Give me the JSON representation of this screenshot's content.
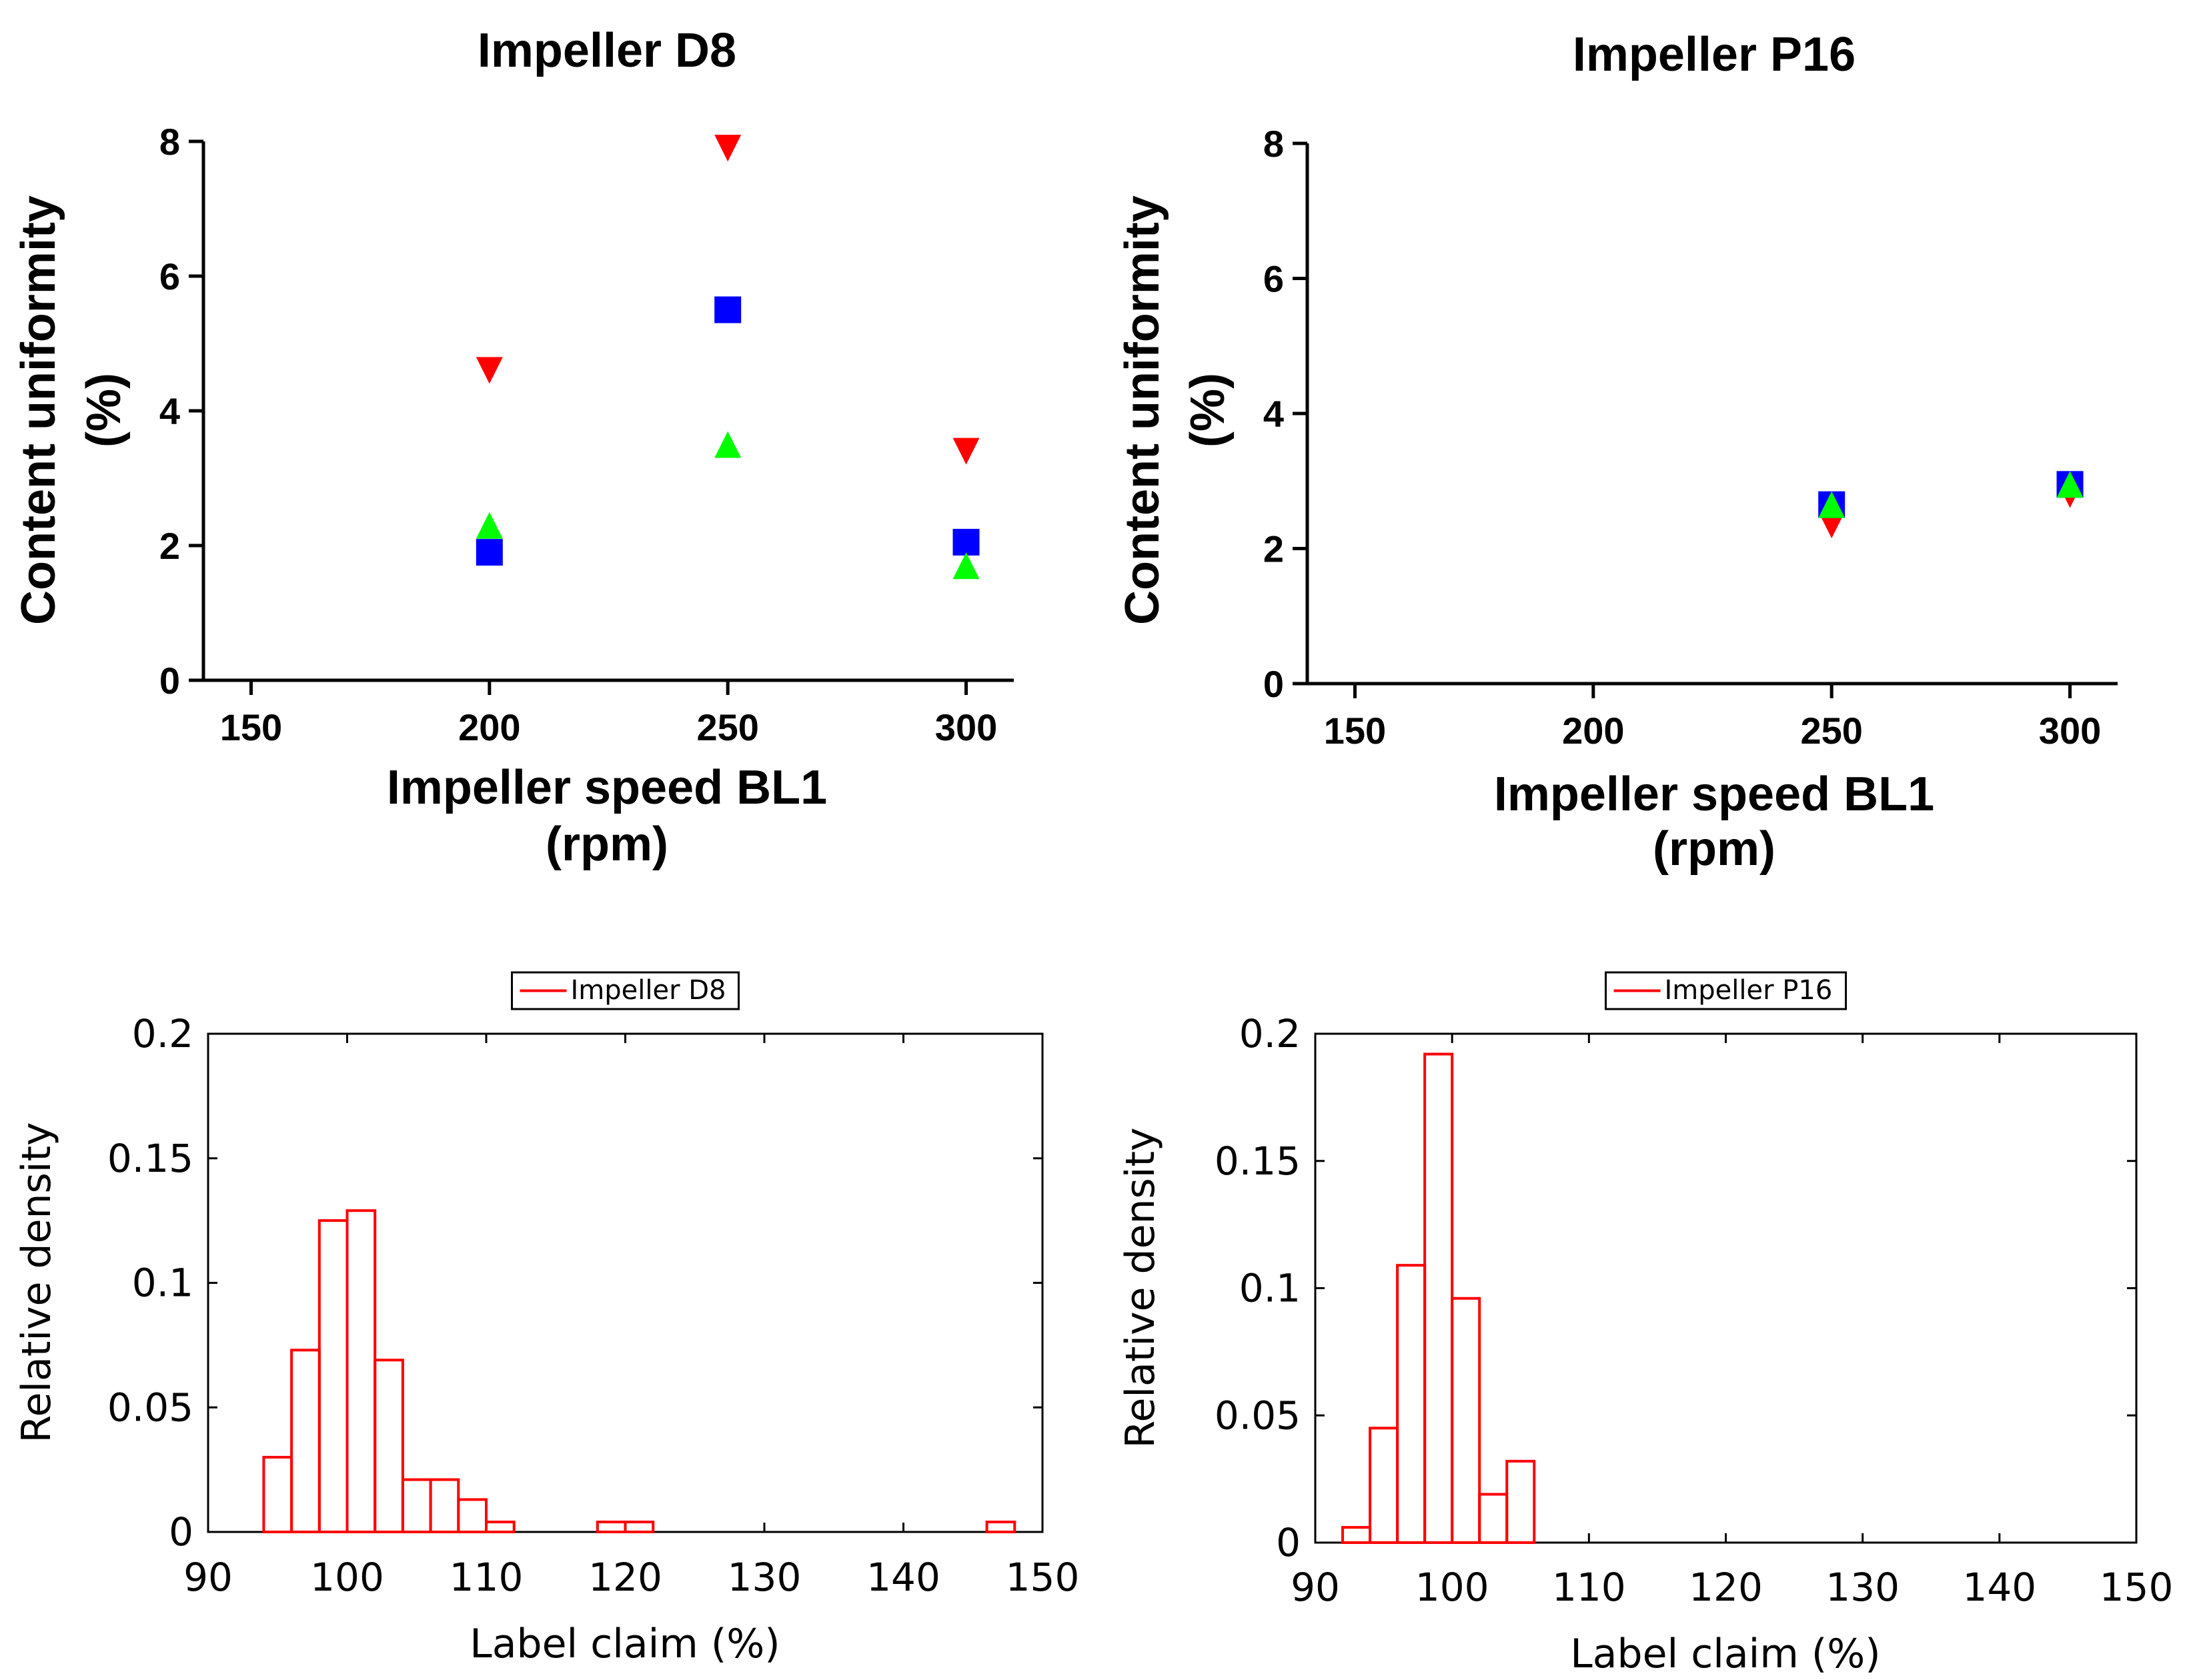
{
  "chart_data": [
    {
      "id": "sc1",
      "type": "scatter",
      "title": "Impeller D8",
      "xlabel": [
        "Impeller speed BL1",
        "(rpm)"
      ],
      "ylabel": [
        "Content uniformity",
        "(%)"
      ],
      "xlim": [
        140,
        310
      ],
      "ylim": [
        0,
        8
      ],
      "xticks": [
        150,
        200,
        250,
        300
      ],
      "yticks": [
        0,
        2,
        4,
        6,
        8
      ],
      "series": [
        {
          "name": "series-red-down-triangle",
          "color": "#ff0000",
          "marker": "triangle-down",
          "points": [
            [
              200,
              4.6
            ],
            [
              250,
              7.9
            ],
            [
              300,
              3.4
            ]
          ]
        },
        {
          "name": "series-blue-square",
          "color": "#0000ff",
          "marker": "square",
          "points": [
            [
              200,
              1.9
            ],
            [
              250,
              5.5
            ],
            [
              300,
              2.05
            ]
          ]
        },
        {
          "name": "series-green-up-triangle",
          "color": "#00ff00",
          "marker": "triangle-up",
          "points": [
            [
              200,
              2.3
            ],
            [
              250,
              3.5
            ],
            [
              300,
              1.7
            ]
          ]
        }
      ]
    },
    {
      "id": "sc2",
      "type": "scatter",
      "title": "Impeller P16",
      "xlabel": [
        "Impeller speed BL1",
        "(rpm)"
      ],
      "ylabel": [
        "Content uniformity",
        "(%)"
      ],
      "xlim": [
        140,
        310
      ],
      "ylim": [
        0,
        8
      ],
      "xticks": [
        150,
        200,
        250,
        300
      ],
      "yticks": [
        0,
        2,
        4,
        6,
        8
      ],
      "series": [
        {
          "name": "series-red-down-triangle",
          "color": "#ff0000",
          "marker": "triangle-down",
          "points": [
            [
              250,
              2.35
            ],
            [
              300,
              2.8
            ]
          ]
        },
        {
          "name": "series-blue-square",
          "color": "#0000ff",
          "marker": "square",
          "points": [
            [
              250,
              2.65
            ],
            [
              300,
              2.95
            ]
          ]
        },
        {
          "name": "series-green-up-triangle",
          "color": "#00ff00",
          "marker": "triangle-up",
          "points": [
            [
              250,
              2.65
            ],
            [
              300,
              2.95
            ]
          ]
        }
      ]
    },
    {
      "id": "h1",
      "type": "bar",
      "subtype": "histogram",
      "legend": "Impeller D8",
      "legend_position": "top-center",
      "color": "#ff0000",
      "xlabel": "Label claim (%)",
      "ylabel": "Relative density",
      "xlim": [
        90,
        150
      ],
      "ylim": [
        0,
        0.2
      ],
      "xticks": [
        90,
        100,
        110,
        120,
        130,
        140,
        150
      ],
      "yticks": [
        0,
        0.05,
        0.1,
        0.15,
        0.2
      ],
      "ytick_labels": [
        "0",
        "0.05",
        "0.1",
        "0.15",
        "0.2"
      ],
      "bin_width": 2,
      "bin_start": 94,
      "values": [
        0.03,
        0.073,
        0.125,
        0.129,
        0.069,
        0.021,
        0.021,
        0.013,
        0.004,
        0,
        0,
        0,
        0.004,
        0.004,
        0,
        0,
        0,
        0,
        0,
        0,
        0,
        0,
        0,
        0,
        0,
        0,
        0.004
      ]
    },
    {
      "id": "h2",
      "type": "bar",
      "subtype": "histogram",
      "legend": "Impeller P16",
      "legend_position": "top-center",
      "color": "#ff0000",
      "xlabel": "Label claim  (%)",
      "ylabel": "Relative density",
      "xlim": [
        90,
        150
      ],
      "ylim": [
        0,
        0.2
      ],
      "xticks": [
        90,
        100,
        110,
        120,
        130,
        140,
        150
      ],
      "yticks": [
        0,
        0.05,
        0.1,
        0.15,
        0.2
      ],
      "ytick_labels": [
        "0",
        "0.05",
        "0.1",
        "0.15",
        "0.2"
      ],
      "bin_width": 2,
      "bin_start": 92,
      "values": [
        0.006,
        0.045,
        0.109,
        0.192,
        0.096,
        0.019,
        0.032
      ]
    }
  ]
}
